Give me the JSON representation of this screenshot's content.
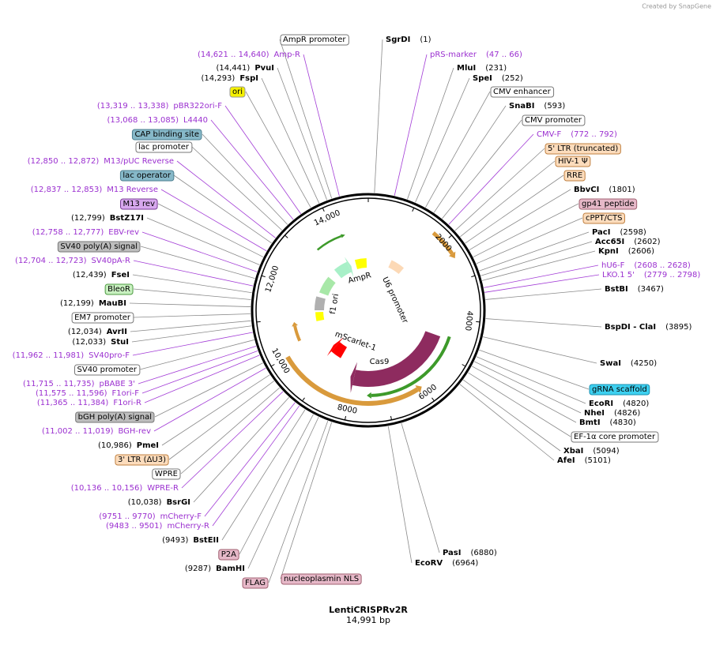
{
  "watermark": "Created by SnapGene",
  "map": {
    "name": "LentiCRISPRv2R",
    "length": "14,991 bp",
    "ring_ticks": [
      "2000",
      "4000",
      "6000",
      "8000",
      "10,000",
      "12,000",
      "14,000"
    ],
    "features_inner": [
      "AmpR",
      "U6 promoter",
      "f1 ori",
      "mScarlet-1",
      "Cas9"
    ]
  },
  "labels": [
    {
      "name": "AmpR promoter"
    },
    {
      "name": "SgrDI",
      "position": "(1)"
    },
    {
      "name": "Amp-R",
      "position": "(14,621 .. 14,640)"
    },
    {
      "name": "pRS-marker",
      "position": "(47 .. 66)"
    },
    {
      "name": "PvuI",
      "position": "(14,441)"
    },
    {
      "name": "MluI",
      "position": "(231)"
    },
    {
      "name": "FspI",
      "position": "(14,293)"
    },
    {
      "name": "SpeI",
      "position": "(252)"
    },
    {
      "name": "ori"
    },
    {
      "name": "CMV enhancer"
    },
    {
      "name": "pBR322ori-F",
      "position": "(13,319 .. 13,338)"
    },
    {
      "name": "SnaBI",
      "position": "(593)"
    },
    {
      "name": "L4440",
      "position": "(13,068 .. 13,085)"
    },
    {
      "name": "CMV promoter"
    },
    {
      "name": "CAP binding site"
    },
    {
      "name": "CMV-F",
      "position": "(772 .. 792)"
    },
    {
      "name": "lac promoter"
    },
    {
      "name": "5' LTR (truncated)"
    },
    {
      "name": "M13/pUC Reverse",
      "position": "(12,850 .. 12,872)"
    },
    {
      "name": "HIV-1 Ψ"
    },
    {
      "name": "lac operator"
    },
    {
      "name": "RRE"
    },
    {
      "name": "M13 Reverse",
      "position": "(12,837 .. 12,853)"
    },
    {
      "name": "BbvCI",
      "position": "(1801)"
    },
    {
      "name": "M13 rev"
    },
    {
      "name": "gp41 peptide"
    },
    {
      "name": "BstZ17I",
      "position": "(12,799)"
    },
    {
      "name": "cPPT/CTS"
    },
    {
      "name": "EBV-rev",
      "position": "(12,758 .. 12,777)"
    },
    {
      "name": "PacI",
      "position": "(2598)"
    },
    {
      "name": "Acc65I",
      "position": "(2602)"
    },
    {
      "name": "SV40 poly(A) signal"
    },
    {
      "name": "KpnI",
      "position": "(2606)"
    },
    {
      "name": "SV40pA-R",
      "position": "(12,704 .. 12,723)"
    },
    {
      "name": "hU6-F",
      "position": "(2608 .. 2628)"
    },
    {
      "name": "FseI",
      "position": "(12,439)"
    },
    {
      "name": "LKO.1 5'",
      "position": "(2779 .. 2798)"
    },
    {
      "name": "BleoR"
    },
    {
      "name": "BstBI",
      "position": "(3467)"
    },
    {
      "name": "MauBI",
      "position": "(12,199)"
    },
    {
      "name": "EM7 promoter"
    },
    {
      "name": "BspDI - ClaI",
      "position": "(3895)"
    },
    {
      "name": "AvrII",
      "position": "(12,034)"
    },
    {
      "name": "StuI",
      "position": "(12,033)"
    },
    {
      "name": "SV40pro-F",
      "position": "(11,962 .. 11,981)"
    },
    {
      "name": "SwaI",
      "position": "(4250)"
    },
    {
      "name": "SV40 promoter"
    },
    {
      "name": "pBABE 3'",
      "position": "(11,715 .. 11,735)"
    },
    {
      "name": "gRNA scaffold"
    },
    {
      "name": "F1ori-F",
      "position": "(11,575 .. 11,596)"
    },
    {
      "name": "F1ori-R",
      "position": "(11,365 .. 11,384)"
    },
    {
      "name": "EcoRI",
      "position": "(4820)"
    },
    {
      "name": "NheI",
      "position": "(4826)"
    },
    {
      "name": "bGH poly(A) signal"
    },
    {
      "name": "BmtI",
      "position": "(4830)"
    },
    {
      "name": "BGH-rev",
      "position": "(11,002 .. 11,019)"
    },
    {
      "name": "EF-1α core promoter"
    },
    {
      "name": "PmeI",
      "position": "(10,986)"
    },
    {
      "name": "XbaI",
      "position": "(5094)"
    },
    {
      "name": "3' LTR (ΔU3)"
    },
    {
      "name": "AfeI",
      "position": "(5101)"
    },
    {
      "name": "WPRE"
    },
    {
      "name": "WPRE-R",
      "position": "(10,136 .. 10,156)"
    },
    {
      "name": "BsrGI",
      "position": "(10,038)"
    },
    {
      "name": "mCherry-F",
      "position": "(9751 .. 9770)"
    },
    {
      "name": "mCherry-R",
      "position": "(9483 .. 9501)"
    },
    {
      "name": "BstEII",
      "position": "(9493)"
    },
    {
      "name": "PasI",
      "position": "(6880)"
    },
    {
      "name": "P2A"
    },
    {
      "name": "EcoRV",
      "position": "(6964)"
    },
    {
      "name": "BamHI",
      "position": "(9287)"
    },
    {
      "name": "nucleoplasmin NLS"
    },
    {
      "name": "FLAG"
    }
  ]
}
